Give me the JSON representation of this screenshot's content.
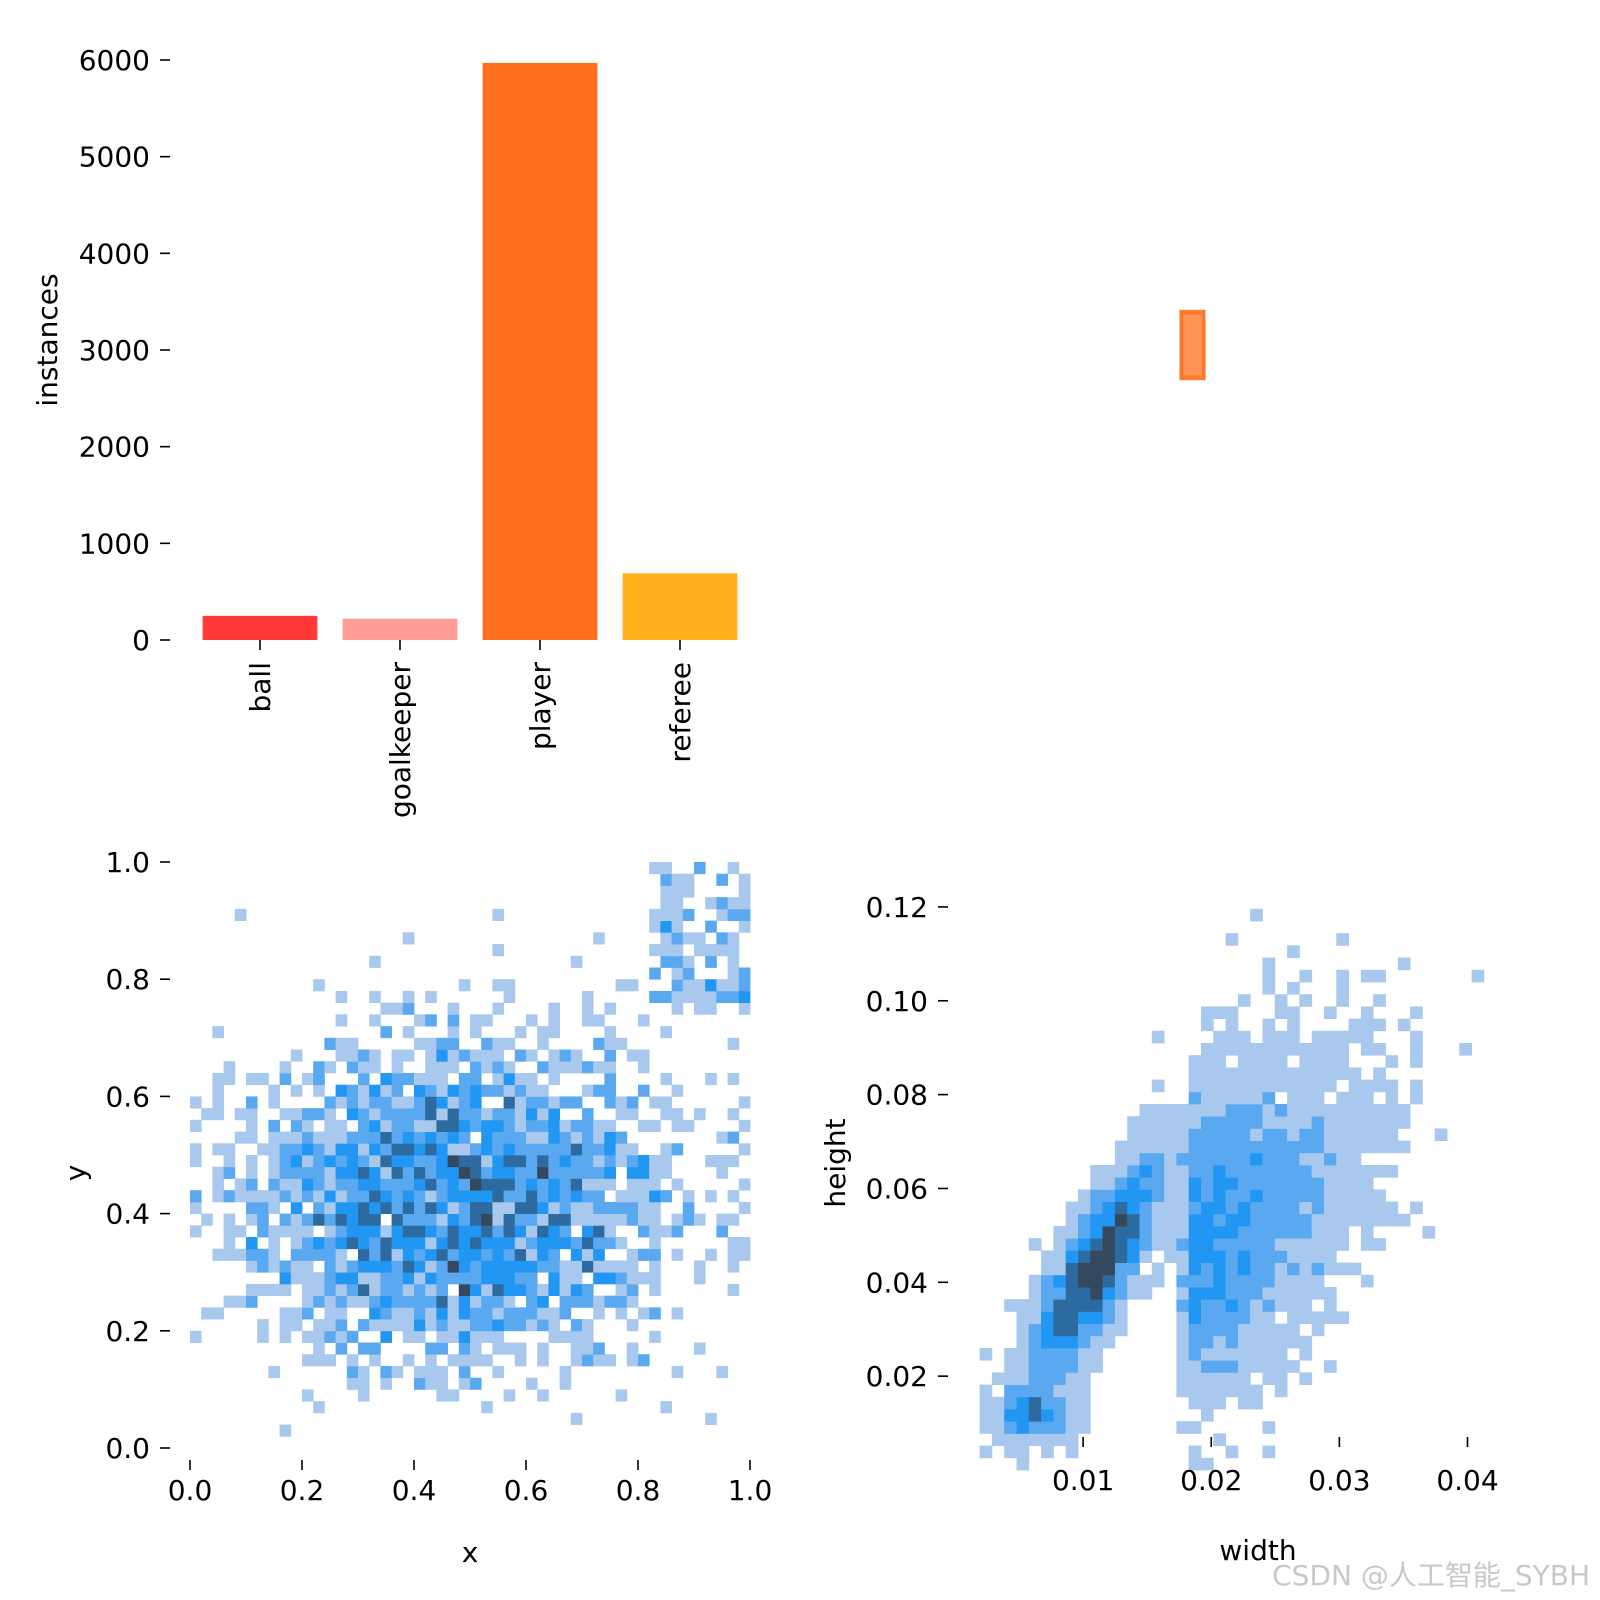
{
  "chart_data": [
    {
      "type": "bar",
      "categories": [
        "ball",
        "goalkeeper",
        "player",
        "referee"
      ],
      "values": [
        250,
        220,
        5970,
        690
      ],
      "colors": [
        "#ff3838",
        "#ff9d97",
        "#ff701f",
        "#ffb21d"
      ],
      "ylabel": "instances",
      "xlabel": "",
      "ylim": [
        0,
        6000
      ],
      "yticks": [
        0,
        1000,
        2000,
        3000,
        4000,
        5000,
        6000
      ],
      "ytick_labels": [
        "0",
        "1000",
        "2000",
        "3000",
        "4000",
        "5000",
        "6000"
      ],
      "grid": false
    },
    {
      "type": "other",
      "description_shown": "",
      "xlim": [
        0,
        1
      ],
      "ylim": [
        0,
        1
      ],
      "boxes": [
        {
          "cx": 0.5,
          "cy": 0.5,
          "w": 0.04,
          "h": 0.11,
          "color": "#ff701f"
        }
      ],
      "axes_visible": false
    },
    {
      "type": "heatmap",
      "xlabel": "x",
      "ylabel": "y",
      "xlim": [
        0,
        1
      ],
      "ylim": [
        0,
        1
      ],
      "xticks": [
        0.0,
        0.2,
        0.4,
        0.6,
        0.8,
        1.0
      ],
      "xtick_labels": [
        "0.0",
        "0.2",
        "0.4",
        "0.6",
        "0.8",
        "1.0"
      ],
      "yticks": [
        0.0,
        0.2,
        0.4,
        0.6,
        0.8,
        1.0
      ],
      "ytick_labels": [
        "0.0",
        "0.2",
        "0.4",
        "0.6",
        "0.8",
        "1.0"
      ],
      "bins": 50,
      "color_scale": [
        "#a9c8ee",
        "#5aa8f0",
        "#2196f3",
        "#2c6aa0",
        "#34495e"
      ],
      "center": [
        0.48,
        0.41
      ],
      "spread": [
        0.2,
        0.14
      ],
      "grid": false
    },
    {
      "type": "heatmap",
      "xlabel": "width",
      "ylabel": "height",
      "xlim": [
        0.0,
        0.048
      ],
      "ylim": [
        0.0,
        0.13
      ],
      "xticks": [
        0.01,
        0.02,
        0.03,
        0.04
      ],
      "xtick_labels": [
        "0.01",
        "0.02",
        "0.03",
        "0.04"
      ],
      "yticks": [
        0.02,
        0.04,
        0.06,
        0.08,
        0.1,
        0.12
      ],
      "ytick_labels": [
        "0.02",
        "0.04",
        "0.06",
        "0.08",
        "0.10",
        "0.12"
      ],
      "bins": 50,
      "color_scale": [
        "#a9c8ee",
        "#5aa8f0",
        "#2196f3",
        "#2c6aa0",
        "#34495e"
      ],
      "grid": false
    }
  ],
  "watermark": "CSDN @人工智能_SYBH"
}
